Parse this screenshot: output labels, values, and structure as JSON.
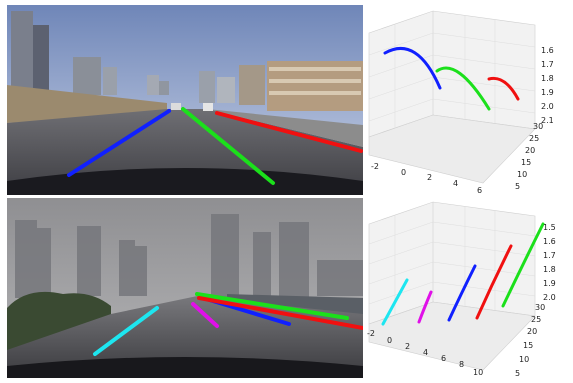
{
  "figure": {
    "panels": [
      {
        "id": "top-photo",
        "scene": "clear-day-city-highway",
        "lanes": [
          {
            "color": "#1020ff"
          },
          {
            "color": "#1be01b"
          },
          {
            "color": "#f01010"
          }
        ]
      },
      {
        "id": "top-3d-plot",
        "z_ticks": [
          "1.6",
          "1.7",
          "1.8",
          "1.9",
          "2.0",
          "2.1"
        ],
        "y_ticks": [
          "5",
          "10",
          "15",
          "20",
          "25",
          "30"
        ],
        "x_ticks": [
          "-2",
          "0",
          "2",
          "4",
          "6"
        ],
        "curves": [
          {
            "color": "#1020ff"
          },
          {
            "color": "#1be01b"
          },
          {
            "color": "#f01010"
          }
        ]
      },
      {
        "id": "bottom-photo",
        "scene": "foggy-city-road",
        "lanes": [
          {
            "color": "#1de6f0"
          },
          {
            "color": "#e010e8"
          },
          {
            "color": "#1020ff"
          },
          {
            "color": "#1be01b"
          },
          {
            "color": "#f01010"
          }
        ]
      },
      {
        "id": "bottom-3d-plot",
        "z_ticks": [
          "1.5",
          "1.6",
          "1.7",
          "1.8",
          "1.9",
          "2.0"
        ],
        "y_ticks": [
          "5",
          "10",
          "15",
          "20",
          "25",
          "30"
        ],
        "x_ticks": [
          "-2",
          "0",
          "2",
          "4",
          "6",
          "8",
          "10"
        ],
        "curves": [
          {
            "color": "#1de6f0"
          },
          {
            "color": "#e010e8"
          },
          {
            "color": "#1020ff"
          },
          {
            "color": "#f01010"
          },
          {
            "color": "#1be01b"
          }
        ]
      }
    ]
  }
}
